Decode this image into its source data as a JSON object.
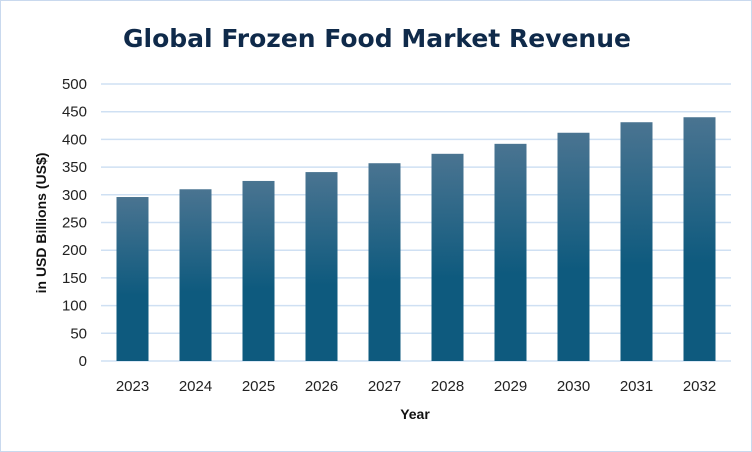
{
  "chart_data": {
    "type": "bar",
    "title": "Global Frozen Food Market Revenue",
    "xlabel": "Year",
    "ylabel": "in USD Billions (US$)",
    "categories": [
      "2023",
      "2024",
      "2025",
      "2026",
      "2027",
      "2028",
      "2029",
      "2030",
      "2031",
      "2032"
    ],
    "values": [
      296,
      310,
      325,
      341,
      357,
      374,
      392,
      412,
      431,
      440
    ],
    "ylim": [
      0,
      500
    ],
    "yticks": [
      0,
      50,
      100,
      150,
      200,
      250,
      300,
      350,
      400,
      450,
      500
    ],
    "grid": true,
    "legend": "none",
    "colors": {
      "bar_top": "#4a7491",
      "bar_bottom": "#0e5a7e",
      "grid": "#cfe0f3"
    }
  }
}
